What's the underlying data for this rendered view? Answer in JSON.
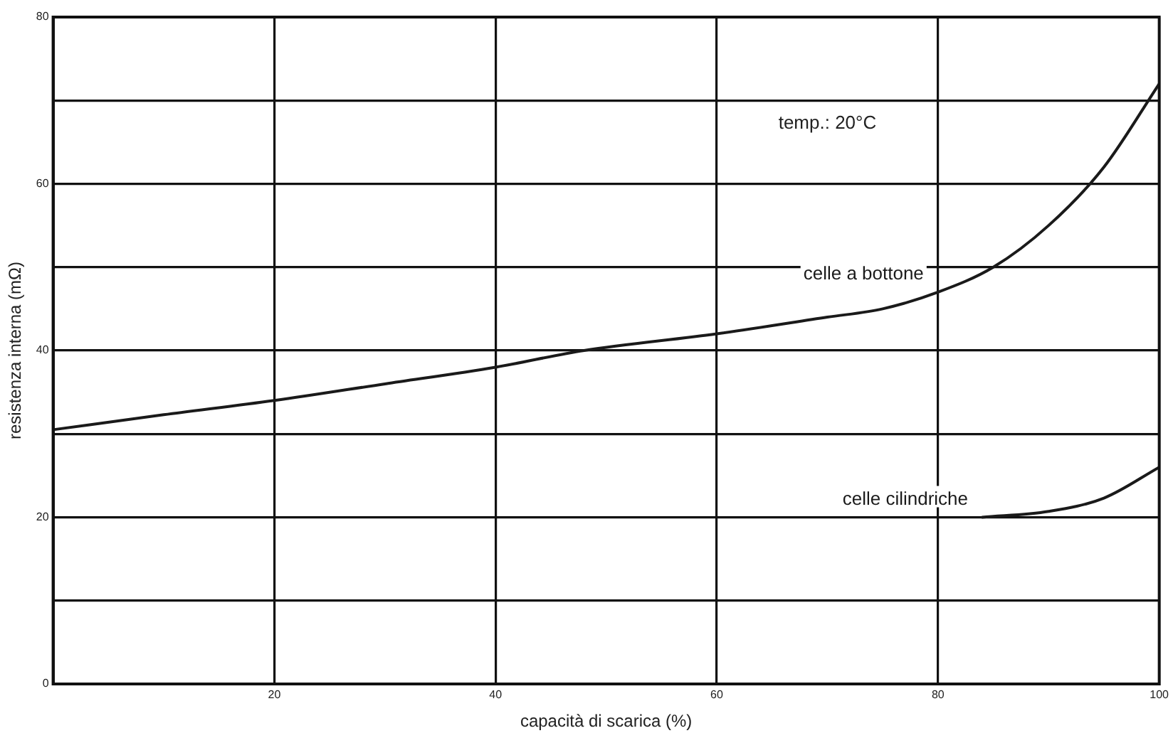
{
  "chart_data": {
    "type": "line",
    "xlabel": "capacità di scarica (%)",
    "ylabel": "resistenza interna (mΩ)",
    "annotations": [
      "temp.: 20°C"
    ],
    "series": [
      {
        "name": "celle a bottone",
        "color": "#1a1a1a",
        "x": [
          0,
          10,
          20,
          30,
          40,
          48,
          60,
          70,
          75,
          80,
          85,
          90,
          95,
          100
        ],
        "values": [
          30.5,
          32.3,
          34,
          36,
          38,
          40,
          42,
          44,
          45,
          47,
          50,
          55,
          62,
          72
        ]
      },
      {
        "name": "celle cilindriche",
        "color": "#1a1a1a",
        "x": [
          84,
          90,
          95,
          100
        ],
        "values": [
          20,
          20.7,
          22.3,
          26
        ]
      }
    ],
    "xlim": [
      0,
      100
    ],
    "xticks": [
      {
        "value": 0,
        "label": null
      },
      20,
      40,
      60,
      80,
      100
    ],
    "ylim": [
      0,
      80
    ],
    "yticks": [
      0,
      {
        "value": 10,
        "label": null
      },
      20,
      {
        "value": 30,
        "label": null
      },
      40,
      {
        "value": 50,
        "label": null
      },
      60,
      {
        "value": 70,
        "label": null
      },
      80
    ],
    "grid": true,
    "legend": false,
    "marker": "none",
    "line_style": "solid"
  }
}
